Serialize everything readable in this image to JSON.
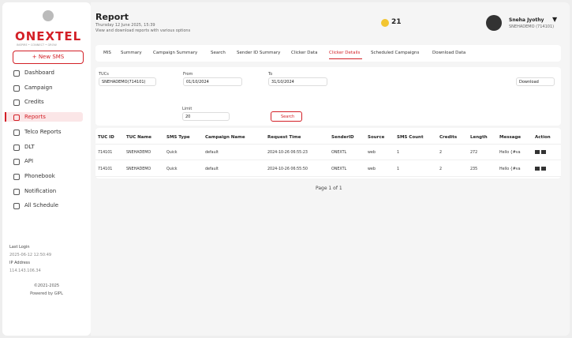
{
  "sidebar": {
    "logo": "ONEXTEL",
    "tagline": "INSPIRE • CONNECT • GROW",
    "new_button": "+ New SMS",
    "menu": [
      "Dashboard",
      "Campaign",
      "Credits",
      "Reports",
      "Telco Reports",
      "DLT",
      "API",
      "Phonebook",
      "Notification",
      "All Schedule"
    ],
    "footer": {
      "last_login_label": "Last Login",
      "last_login": "2025-06-12 12:50:49",
      "ip_label": "IP Address",
      "ip": "114.143.106.34",
      "copyright": "©2021-2025",
      "powered": "Powered by GIPL"
    }
  },
  "header": {
    "title": "Report",
    "date": "Thursday 12 June 2025, 15:39",
    "subtitle": "View and download reports with various options",
    "coins": "21",
    "user_name": "Sneha Jyothy",
    "user_id": "SNEHADEMO (714101)"
  },
  "tabs": [
    "MIS",
    "Summary",
    "Campaign Summary",
    "Search",
    "Sender ID Summary",
    "Clicker Data",
    "Clicker Details",
    "Scheduled Campaigns",
    "Download Data"
  ],
  "filters": {
    "tucs_label": "TUCs",
    "tucs_value": "SNEHADEMO(714101)",
    "from_label": "From",
    "from_value": "01/10/2024",
    "to_label": "To",
    "to_value": "31/10/2024",
    "download": "Download",
    "limit_label": "Limit",
    "limit_value": "20",
    "search": "Search"
  },
  "table": {
    "headers": [
      "TUC ID",
      "TUC Name",
      "SMS Type",
      "Campaign Name",
      "Request Time",
      "SenderID",
      "Source",
      "SMS Count",
      "Credits",
      "Length",
      "Message",
      "Action"
    ],
    "rows": [
      [
        "714101",
        "SNEHADEMO",
        "Quick",
        "default",
        "2024-10-26 06:55:23",
        "ONEXTL",
        "web",
        "1",
        "2",
        "272",
        "Hello {#va"
      ],
      [
        "714101",
        "SNEHADEMO",
        "Quick",
        "default",
        "2024-10-26 06:55:50",
        "ONEXTL",
        "web",
        "1",
        "2",
        "235",
        "Hello {#va"
      ]
    ]
  },
  "pagination": "Page 1 of 1"
}
